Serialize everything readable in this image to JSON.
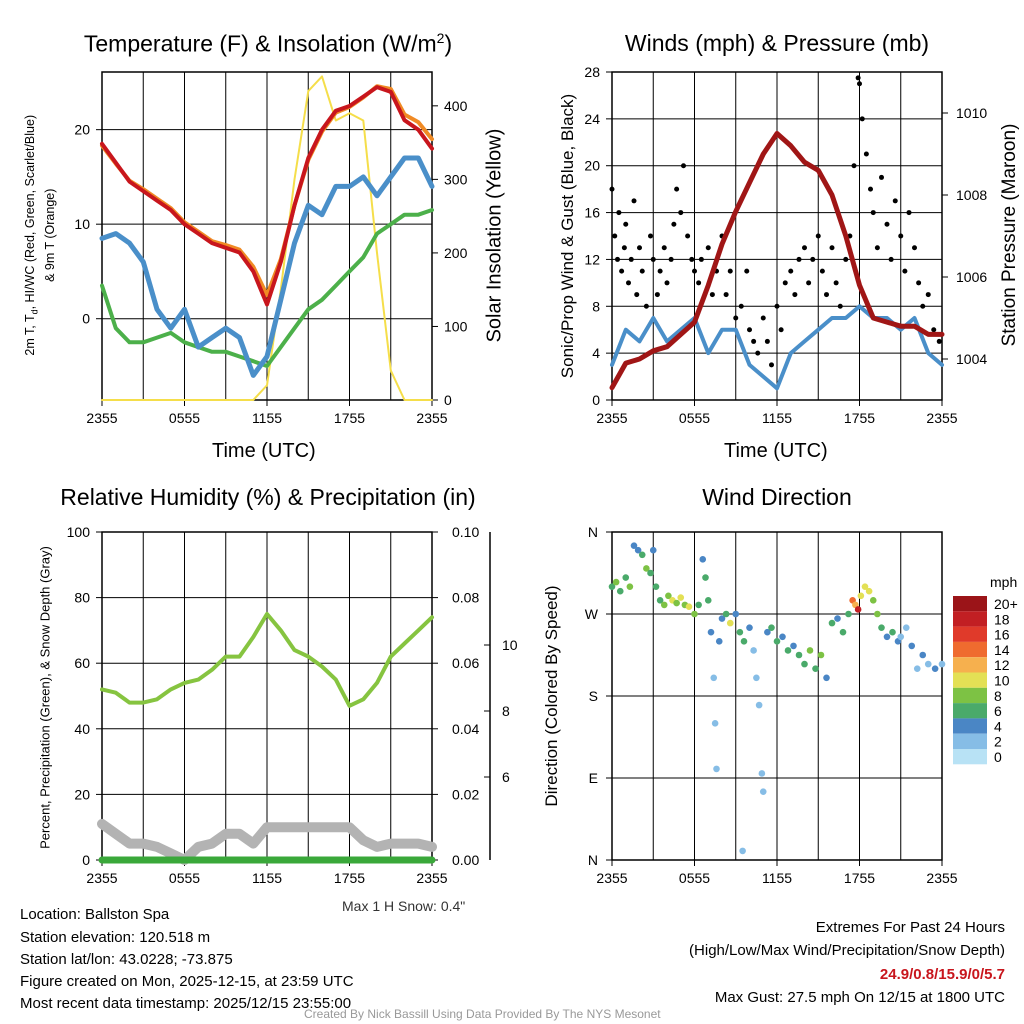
{
  "panels": {
    "temp": {
      "title_pre": "Temperature (F) & Insolation (W/m",
      "title_sup": "2",
      "title_post": ")",
      "ylabel_line1": "2m T, T",
      "ylabel_sub": "d",
      "ylabel_rest": ", HI/WC (Red, Green, Scarlet/Blue)",
      "ylabel_line2": "& 9m T (Orange)",
      "y2label": "Solar Insolation (Yellow)",
      "xlabel": "Time (UTC)"
    },
    "wind": {
      "title": "Winds (mph) & Pressure (mb)",
      "ylabel": "Sonic/Prop Wind & Gust (Blue, Black)",
      "y2label": "Station Pressure (Maroon)",
      "xlabel": "Time (UTC)"
    },
    "rh": {
      "title": "Relative Humidity (%) & Precipitation (in)",
      "ylabel": "Percent, Precipitation (Green), & Snow Depth (Gray)",
      "note": "Max 1 H Snow: 0.4\""
    },
    "dir": {
      "title": "Wind Direction",
      "ylabel": "Direction (Colored By Speed)",
      "colorbar_title": "mph"
    }
  },
  "info": {
    "location": "Location: Ballston Spa",
    "elevation": "Station elevation: 120.518 m",
    "latlon": "Station lat/lon: 43.0228; -73.875",
    "created": "Figure created on Mon, 2025-12-15, at 23:59 UTC",
    "recent": "Most recent data timestamp: 2025/12/15 23:55:00",
    "extremes_title": "Extremes For Past 24 Hours",
    "extremes_legend": "(High/Low/Max Wind/Precipitation/Snow Depth)",
    "extremes_values": "24.9/0.8/15.9/0/5.7",
    "max_gust": "Max Gust: 27.5 mph On 12/15 at 1800 UTC",
    "credit": "Created By Nick Bassill Using Data Provided By The NYS Mesonet"
  },
  "colors": {
    "red": "#c8161d",
    "orange": "#f08a24",
    "green": "#4cb04a",
    "blue": "#4a8fc9",
    "yellow": "#f5de4a",
    "black": "#000000",
    "maroon": "#a01616",
    "gray": "#b3b3b3",
    "rh": "#86c440",
    "precip": "#3aa83a"
  },
  "chart_data": [
    {
      "type": "line",
      "title": "Temperature (F) & Insolation (W/m2)",
      "xlabel": "Time (UTC)",
      "xticks": [
        "2355",
        "0555",
        "1155",
        "1755",
        "2355"
      ],
      "xlim_hours": [
        0,
        24
      ],
      "ylim": [
        -8.6,
        26.1
      ],
      "yticks": [
        0,
        10,
        20
      ],
      "y2lim": [
        0,
        446
      ],
      "y2ticks": [
        0,
        100,
        200,
        300,
        400
      ],
      "series": [
        {
          "name": "2m T (Red)",
          "values": [
            18.5,
            16.5,
            14.5,
            13.5,
            12.5,
            11.5,
            10,
            9,
            8,
            7.5,
            7,
            5,
            1.5,
            6,
            12,
            17,
            20,
            22,
            22.5,
            23.5,
            24.5,
            24,
            21,
            20,
            18
          ]
        },
        {
          "name": "9m T (Orange)",
          "values": [
            18.3,
            16.4,
            14.6,
            13.7,
            12.7,
            11.7,
            10.2,
            9.2,
            8.2,
            7.8,
            7.3,
            5.5,
            2.5,
            6.3,
            12,
            16.8,
            19.8,
            21.8,
            22.4,
            23.4,
            24.6,
            24.3,
            21.6,
            20.8,
            19
          ]
        },
        {
          "name": "Td (Green)",
          "values": [
            3.5,
            -1,
            -2.5,
            -2.5,
            -2,
            -1.5,
            -2.5,
            -3,
            -3.5,
            -3.5,
            -4,
            -4.5,
            -5,
            -3,
            -1,
            1,
            2,
            3.5,
            5,
            6.5,
            9,
            10,
            11,
            11,
            11.5
          ]
        },
        {
          "name": "HI/WC (Blue)",
          "values": [
            8.5,
            9,
            8,
            6,
            1,
            -1,
            1,
            -3,
            -2,
            -1,
            -2,
            -6,
            -4,
            2,
            8,
            12,
            11,
            14,
            14,
            15,
            13,
            15,
            17,
            17,
            14
          ]
        },
        {
          "name": "Solar Insolation (Yellow)",
          "axis": "y2",
          "values": [
            0,
            0,
            0,
            0,
            0,
            0,
            0,
            0,
            0,
            0,
            0,
            0,
            20,
            150,
            300,
            420,
            440,
            380,
            390,
            380,
            200,
            40,
            0,
            0,
            0
          ]
        }
      ]
    },
    {
      "type": "line+scatter",
      "title": "Winds (mph) & Pressure (mb)",
      "xlabel": "Time (UTC)",
      "xticks": [
        "2355",
        "0555",
        "1155",
        "1755",
        "2355"
      ],
      "xlim_hours": [
        0,
        24
      ],
      "ylim": [
        0,
        28
      ],
      "yticks": [
        0,
        4,
        8,
        12,
        16,
        20,
        24,
        28
      ],
      "y2lim": [
        1003.0,
        1011.0
      ],
      "y2ticks": [
        1004,
        1006,
        1008,
        1010
      ],
      "sonic_wind": [
        3,
        6,
        5,
        7,
        5,
        6,
        7,
        4,
        6,
        6,
        3,
        2,
        1,
        4,
        5,
        6,
        7,
        7,
        8,
        7,
        7,
        6,
        7,
        4,
        3
      ],
      "pressure": [
        1003.3,
        1003.9,
        1004.0,
        1004.2,
        1004.3,
        1004.6,
        1004.9,
        1005.8,
        1006.8,
        1007.6,
        1008.3,
        1009.0,
        1009.5,
        1009.2,
        1008.8,
        1008.6,
        1008.0,
        1007.0,
        1005.8,
        1005.0,
        1004.9,
        1004.8,
        1004.8,
        1004.6,
        1004.6
      ],
      "gusts": [
        [
          0,
          18
        ],
        [
          0.2,
          14
        ],
        [
          0.4,
          12
        ],
        [
          0.5,
          16
        ],
        [
          0.7,
          11
        ],
        [
          0.9,
          13
        ],
        [
          1,
          15
        ],
        [
          1.2,
          10
        ],
        [
          1.4,
          12
        ],
        [
          1.6,
          17
        ],
        [
          1.8,
          9
        ],
        [
          2,
          13
        ],
        [
          2.2,
          11
        ],
        [
          2.5,
          8
        ],
        [
          2.8,
          14
        ],
        [
          3,
          12
        ],
        [
          3.3,
          9
        ],
        [
          3.5,
          11
        ],
        [
          3.8,
          13
        ],
        [
          4,
          10
        ],
        [
          4.3,
          12
        ],
        [
          4.5,
          15
        ],
        [
          4.7,
          18
        ],
        [
          5,
          16
        ],
        [
          5.2,
          20
        ],
        [
          5.5,
          14
        ],
        [
          5.8,
          12
        ],
        [
          6,
          11
        ],
        [
          6.3,
          10
        ],
        [
          6.5,
          12
        ],
        [
          7,
          13
        ],
        [
          7.3,
          9
        ],
        [
          7.6,
          11
        ],
        [
          8,
          14
        ],
        [
          8.3,
          9
        ],
        [
          8.6,
          11
        ],
        [
          9,
          7
        ],
        [
          9.4,
          8
        ],
        [
          9.8,
          11
        ],
        [
          10,
          6
        ],
        [
          10.3,
          5
        ],
        [
          10.6,
          4
        ],
        [
          11,
          7
        ],
        [
          11.3,
          5
        ],
        [
          11.6,
          3
        ],
        [
          12,
          8
        ],
        [
          12.3,
          6
        ],
        [
          12.6,
          10
        ],
        [
          13,
          11
        ],
        [
          13.3,
          9
        ],
        [
          13.6,
          12
        ],
        [
          14,
          13
        ],
        [
          14.3,
          10
        ],
        [
          14.6,
          12
        ],
        [
          15,
          14
        ],
        [
          15.3,
          11
        ],
        [
          15.6,
          9
        ],
        [
          16,
          13
        ],
        [
          16.3,
          10
        ],
        [
          16.6,
          8
        ],
        [
          17,
          12
        ],
        [
          17.3,
          14
        ],
        [
          17.6,
          20
        ],
        [
          17.9,
          27.5
        ],
        [
          18,
          27
        ],
        [
          18.2,
          24
        ],
        [
          18.5,
          21
        ],
        [
          18.8,
          18
        ],
        [
          19,
          16
        ],
        [
          19.3,
          13
        ],
        [
          19.6,
          19
        ],
        [
          20,
          15
        ],
        [
          20.3,
          12
        ],
        [
          20.6,
          17
        ],
        [
          21,
          14
        ],
        [
          21.3,
          11
        ],
        [
          21.6,
          16
        ],
        [
          22,
          13
        ],
        [
          22.3,
          10
        ],
        [
          22.6,
          8
        ],
        [
          23,
          9
        ],
        [
          23.4,
          6
        ],
        [
          23.8,
          5
        ]
      ]
    },
    {
      "type": "line",
      "title": "Relative Humidity (%) & Precipitation (in)",
      "xticks": [
        "2355",
        "0555",
        "1155",
        "1755",
        "2355"
      ],
      "xlim_hours": [
        0,
        24
      ],
      "ylim": [
        0,
        100
      ],
      "yticks": [
        0,
        20,
        40,
        60,
        80,
        100
      ],
      "y2lim": [
        0,
        0.1
      ],
      "y2ticks": [
        "0.00",
        "0.02",
        "0.04",
        "0.06",
        "0.08",
        "0.10"
      ],
      "y3ticks": [
        6,
        8,
        10
      ],
      "rh": [
        52,
        51,
        48,
        48,
        49,
        52,
        54,
        55,
        58,
        62,
        62,
        68,
        75,
        70,
        64,
        62,
        59,
        55,
        47,
        49,
        54,
        62,
        66,
        70,
        74
      ],
      "precip": [
        0,
        0,
        0,
        0,
        0,
        0,
        0,
        0,
        0,
        0,
        0,
        0,
        0,
        0,
        0,
        0,
        0,
        0,
        0,
        0,
        0,
        0,
        0,
        0,
        0
      ],
      "snow_depth_gray": [
        11,
        8,
        5,
        5,
        4,
        2,
        0,
        4,
        5,
        8,
        8,
        5,
        10,
        10,
        10,
        10,
        10,
        10,
        10,
        6,
        4,
        5,
        5,
        5,
        4
      ]
    },
    {
      "type": "scatter",
      "title": "Wind Direction",
      "xticks": [
        "2355",
        "0555",
        "1155",
        "1755",
        "2355"
      ],
      "xlim_hours": [
        0,
        24
      ],
      "yticks": [
        "N",
        "W",
        "S",
        "E",
        "N"
      ],
      "ylim_deg": [
        0,
        360
      ],
      "colorbar": {
        "labels": [
          "20+",
          "18",
          "16",
          "14",
          "12",
          "10",
          "8",
          "6",
          "4",
          "2",
          "0"
        ],
        "colors": [
          "#9b1418",
          "#c21f23",
          "#e03a2a",
          "#ef6b2f",
          "#f6b04e",
          "#e3e055",
          "#7dc244",
          "#4aaa6a",
          "#4a86c5",
          "#86bde6",
          "#b8e2f5"
        ]
      },
      "points": [
        [
          0,
          300,
          6
        ],
        [
          0.3,
          305,
          8
        ],
        [
          0.6,
          295,
          6
        ],
        [
          1,
          310,
          5
        ],
        [
          1.3,
          300,
          7
        ],
        [
          1.6,
          345,
          4
        ],
        [
          1.9,
          340,
          4
        ],
        [
          2.2,
          335,
          6
        ],
        [
          2.5,
          320,
          8
        ],
        [
          2.8,
          315,
          5
        ],
        [
          3,
          340,
          4
        ],
        [
          3.2,
          300,
          6
        ],
        [
          3.5,
          285,
          6
        ],
        [
          3.8,
          280,
          8
        ],
        [
          4.1,
          290,
          7
        ],
        [
          4.4,
          285,
          9
        ],
        [
          4.7,
          282,
          8
        ],
        [
          5,
          288,
          10
        ],
        [
          5.3,
          280,
          8
        ],
        [
          5.6,
          278,
          10
        ],
        [
          6,
          270,
          8
        ],
        [
          6.3,
          280,
          6
        ],
        [
          6.6,
          330,
          3
        ],
        [
          6.8,
          310,
          5
        ],
        [
          7,
          285,
          6
        ],
        [
          7.2,
          250,
          4
        ],
        [
          7.4,
          200,
          2
        ],
        [
          7.5,
          150,
          2
        ],
        [
          7.6,
          100,
          2
        ],
        [
          7.8,
          240,
          3
        ],
        [
          8,
          265,
          4
        ],
        [
          8.3,
          270,
          6
        ],
        [
          8.6,
          260,
          10
        ],
        [
          9,
          270,
          4
        ],
        [
          9.3,
          250,
          5
        ],
        [
          9.6,
          240,
          6
        ],
        [
          10,
          255,
          3
        ],
        [
          10.3,
          230,
          2
        ],
        [
          10.5,
          200,
          2
        ],
        [
          10.7,
          170,
          2
        ],
        [
          10.9,
          95,
          1
        ],
        [
          11,
          75,
          1
        ],
        [
          11.3,
          250,
          4
        ],
        [
          11.6,
          255,
          6
        ],
        [
          12,
          240,
          5
        ],
        [
          12.4,
          245,
          4
        ],
        [
          12.8,
          230,
          6
        ],
        [
          13.2,
          235,
          4
        ],
        [
          13.6,
          225,
          6
        ],
        [
          14,
          215,
          5
        ],
        [
          14.4,
          230,
          7
        ],
        [
          14.8,
          210,
          6
        ],
        [
          15.2,
          225,
          7
        ],
        [
          15.6,
          200,
          4
        ],
        [
          16,
          260,
          5
        ],
        [
          16.4,
          265,
          4
        ],
        [
          16.8,
          250,
          6
        ],
        [
          17.2,
          270,
          5
        ],
        [
          17.5,
          285,
          14
        ],
        [
          17.7,
          280,
          12
        ],
        [
          17.9,
          275,
          17
        ],
        [
          18.1,
          290,
          10
        ],
        [
          18.4,
          300,
          9
        ],
        [
          18.7,
          295,
          10
        ],
        [
          19,
          285,
          8
        ],
        [
          19.3,
          270,
          7
        ],
        [
          19.6,
          255,
          6
        ],
        [
          20,
          245,
          4
        ],
        [
          20.4,
          250,
          5
        ],
        [
          20.8,
          240,
          3
        ],
        [
          21,
          245,
          2
        ],
        [
          21.4,
          255,
          2
        ],
        [
          21.8,
          235,
          3
        ],
        [
          22.2,
          210,
          2
        ],
        [
          22.6,
          225,
          4
        ],
        [
          23,
          215,
          2
        ],
        [
          23.5,
          210,
          3
        ],
        [
          24,
          215,
          2
        ],
        [
          9.5,
          10,
          1
        ]
      ]
    }
  ]
}
